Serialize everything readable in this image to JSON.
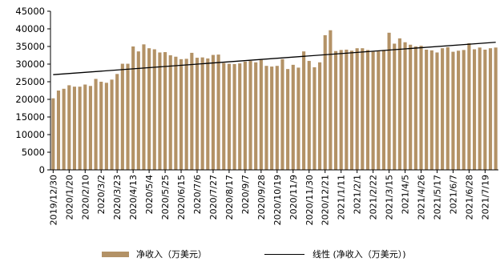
{
  "chart_data": {
    "type": "bar",
    "title": "",
    "xlabel": "",
    "ylabel": "",
    "ylim": [
      0,
      45000
    ],
    "yticks": [
      0,
      5000,
      10000,
      15000,
      20000,
      25000,
      30000,
      35000,
      40000,
      45000
    ],
    "grid": false,
    "legend_position": "bottom",
    "bar_color": "#b39266",
    "trend_color": "#000000",
    "x_tick_labels": [
      "2019/12/30",
      "2020/1/20",
      "2020/2/10",
      "2020/3/2",
      "2020/3/23",
      "2020/4/13",
      "2020/5/4",
      "2020/5/25",
      "2020/6/15",
      "2020/7/6",
      "2020/7/27",
      "2020/8/17",
      "2020/9/7",
      "2020/9/28",
      "2020/10/19",
      "2020/11/9",
      "2020/11/30",
      "2020/12/21",
      "2021/1/11",
      "2021/2/1",
      "2021/2/22",
      "2021/3/15",
      "2021/4/5",
      "2021/4/26",
      "2021/5/17",
      "2021/6/7",
      "2021/6/28",
      "2021/7/19"
    ],
    "series": [
      {
        "name": "净收入（万美元）",
        "type": "bar",
        "values": [
          20300,
          22500,
          23000,
          24000,
          23600,
          23600,
          24200,
          23800,
          25800,
          25000,
          24700,
          25600,
          27200,
          30100,
          30100,
          35000,
          33600,
          35600,
          34500,
          34200,
          33300,
          33400,
          32500,
          32100,
          31400,
          31500,
          33200,
          31800,
          31900,
          31600,
          32600,
          32700,
          30300,
          30100,
          30000,
          30200,
          30700,
          30900,
          30500,
          31200,
          29500,
          29300,
          29500,
          31400,
          28600,
          29800,
          29000,
          33600,
          30900,
          29100,
          30500,
          38200,
          39600,
          33700,
          34000,
          34100,
          33800,
          34500,
          34500,
          34000,
          33500,
          33600,
          34000,
          38900,
          35800,
          37300,
          36200,
          35500,
          35000,
          35200,
          34100,
          33900,
          33300,
          34500,
          34800,
          33500,
          33800,
          34000,
          35900,
          34200,
          34700,
          34100,
          34500,
          34700
        ]
      },
      {
        "name": "线性 (净收入（万美元）)",
        "type": "line",
        "trend": "linear",
        "values": [
          27000,
          36200
        ]
      }
    ]
  },
  "legend": {
    "bar_label": "净收入（万美元）",
    "line_label": "线性 (净收入（万美元）)"
  }
}
